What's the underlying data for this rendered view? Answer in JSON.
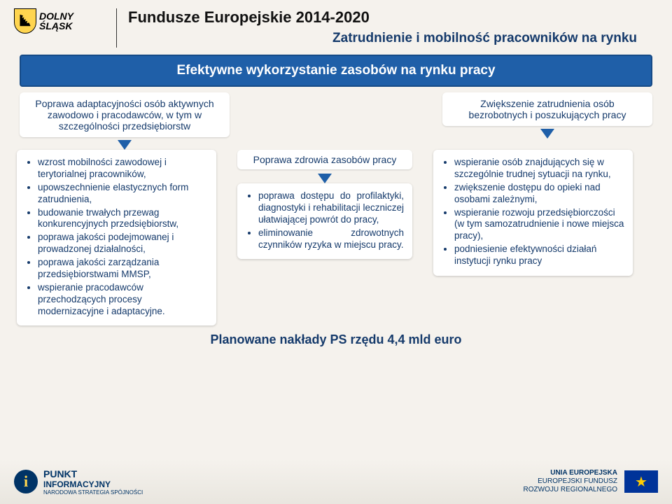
{
  "header": {
    "logo_line1": "DOLNY",
    "logo_line2": "ŚLĄSK",
    "title": "Fundusze Europejskie 2014-2020",
    "subtitle": "Zatrudnienie i mobilność pracowników na rynku"
  },
  "banner": "Efektywne wykorzystanie zasobów na rynku pracy",
  "top_left": "Poprawa adaptacyjności osób aktywnych zawodowo i pracodawców, w tym w szczególności przedsiębiorstw",
  "top_right": "Zwiększenie zatrudnienia osób bezrobotnych i poszukujących pracy",
  "mid_title": "Poprawa zdrowia zasobów pracy",
  "left_list": [
    "wzrost mobilności zawodowej i terytorialnej pracowników,",
    "upowszechnienie elastycznych form zatrudnienia,",
    "budowanie trwałych przewag konkurencyjnych przedsiębiorstw,",
    "poprawa jakości podejmowanej i prowadzonej działalności,",
    "poprawa jakości zarządzania przedsiębiorstwami MMSP,",
    "wspieranie pracodawców przechodzących procesy modernizacyjne i adaptacyjne."
  ],
  "mid_list": [
    "poprawa dostępu do profilaktyki, diagnostyki i rehabilitacji leczniczej ułatwiającej powrót do pracy,",
    "eliminowanie zdrowotnych czynników ryzyka w miejscu pracy."
  ],
  "right_list": [
    "wspieranie osób znajdujących się w szczególnie trudnej sytuacji na rynku,",
    "zwiększenie dostępu do opieki nad osobami zależnymi,",
    "wspieranie rozwoju przedsiębiorczości (w tym samozatrudnienie i nowe miejsca pracy),",
    "podniesienie efektywności działań instytucji rynku pracy"
  ],
  "footer_note": "Planowane nakłady PS rzędu 4,4 mld euro",
  "footer": {
    "punkt_line1": "PUNKT",
    "punkt_line2": "INFORMACYJNY",
    "punkt_line3": "NARODOWA STRATEGIA SPÓJNOŚCI",
    "eu_line1": "UNIA EUROPEJSKA",
    "eu_line2": "EUROPEJSKI FUNDUSZ",
    "eu_line3": "ROZWOJU REGIONALNEGO"
  },
  "colors": {
    "brand_blue": "#1f5fa8",
    "text_blue": "#153a6b",
    "bg": "#f5f2ed",
    "eu_blue": "#003399",
    "shield_yellow": "#ffd54f"
  }
}
